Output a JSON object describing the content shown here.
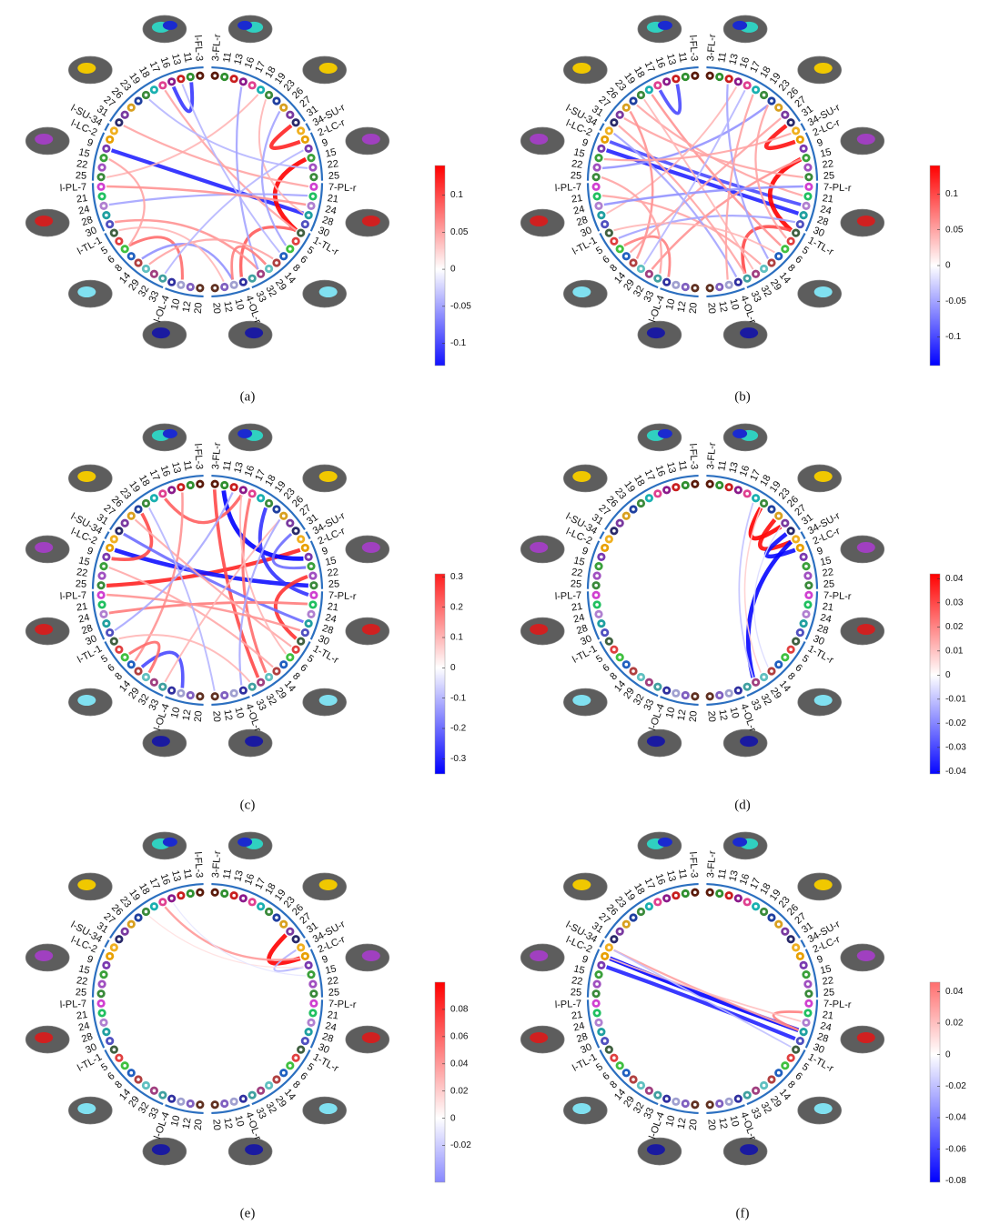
{
  "ring": {
    "labels": [
      "3-FL-r",
      "11",
      "13",
      "16",
      "17",
      "18",
      "19",
      "23",
      "26",
      "27",
      "31",
      "34-SU-r",
      "2-LC-r",
      "9",
      "15",
      "22",
      "25",
      "7-PL-r",
      "21",
      "24",
      "28",
      "30",
      "1-TL-r",
      "5",
      "6",
      "8",
      "14",
      "29",
      "32",
      "33",
      "4-OL-r",
      "10",
      "12",
      "20",
      "l-FL-3",
      "11",
      "13",
      "16",
      "17",
      "18",
      "19",
      "23",
      "26",
      "27",
      "31",
      "l-SU-34",
      "l-LC-2",
      "9",
      "15",
      "22",
      "25",
      "l-PL-7",
      "21",
      "24",
      "28",
      "30",
      "l-TL-1",
      "5",
      "6",
      "8",
      "14",
      "29",
      "32",
      "33",
      "l-OL-4",
      "10",
      "12",
      "20"
    ]
  },
  "chart_data": [
    {
      "type": "chord",
      "caption": "(a)",
      "clim": [
        -0.13,
        0.14
      ],
      "cticks": [
        0.1,
        0.05,
        0,
        -0.05,
        -0.1
      ],
      "edges": [
        {
          "source": 47,
          "target": 20,
          "value": -0.12
        },
        {
          "source": 14,
          "target": 22,
          "value": 0.14
        },
        {
          "source": 10,
          "target": 12,
          "value": 0.12
        },
        {
          "source": 22,
          "target": 30,
          "value": 0.09
        },
        {
          "source": 37,
          "target": 35,
          "value": -0.11
        },
        {
          "source": 58,
          "target": 65,
          "value": 0.08
        },
        {
          "source": 38,
          "target": 22,
          "value": 0.05
        },
        {
          "source": 50,
          "target": 5,
          "value": 0.04
        },
        {
          "source": 53,
          "target": 18,
          "value": -0.05
        },
        {
          "source": 55,
          "target": 28,
          "value": 0.06
        },
        {
          "source": 40,
          "target": 15,
          "value": -0.04
        },
        {
          "source": 44,
          "target": 17,
          "value": 0.05
        },
        {
          "source": 60,
          "target": 31,
          "value": -0.06
        },
        {
          "source": 3,
          "target": 28,
          "value": -0.05
        },
        {
          "source": 6,
          "target": 20,
          "value": 0.04
        },
        {
          "source": 48,
          "target": 58,
          "value": 0.05
        },
        {
          "source": 61,
          "target": 26,
          "value": 0.05
        },
        {
          "source": 36,
          "target": 25,
          "value": -0.04
        },
        {
          "source": 56,
          "target": 32,
          "value": 0.04
        },
        {
          "source": 8,
          "target": 24,
          "value": -0.05
        },
        {
          "source": 63,
          "target": 13,
          "value": -0.04
        },
        {
          "source": 51,
          "target": 19,
          "value": 0.06
        },
        {
          "source": 27,
          "target": 31,
          "value": 0.07
        }
      ]
    },
    {
      "type": "chord",
      "caption": "(b)",
      "clim": [
        -0.14,
        0.14
      ],
      "cticks": [
        0.1,
        0.05,
        0,
        -0.05,
        -0.1
      ],
      "edges": [
        {
          "source": 47,
          "target": 20,
          "value": -0.12
        },
        {
          "source": 46,
          "target": 19,
          "value": -0.1
        },
        {
          "source": 14,
          "target": 22,
          "value": 0.14
        },
        {
          "source": 10,
          "target": 12,
          "value": 0.13
        },
        {
          "source": 36,
          "target": 38,
          "value": -0.1
        },
        {
          "source": 22,
          "target": 29,
          "value": 0.1
        },
        {
          "source": 58,
          "target": 64,
          "value": 0.07
        },
        {
          "source": 39,
          "target": 24,
          "value": 0.06
        },
        {
          "source": 41,
          "target": 18,
          "value": 0.05
        },
        {
          "source": 43,
          "target": 16,
          "value": 0.05
        },
        {
          "source": 49,
          "target": 7,
          "value": -0.06
        },
        {
          "source": 52,
          "target": 27,
          "value": 0.05
        },
        {
          "source": 54,
          "target": 3,
          "value": 0.04
        },
        {
          "source": 57,
          "target": 21,
          "value": -0.05
        },
        {
          "source": 59,
          "target": 9,
          "value": 0.05
        },
        {
          "source": 62,
          "target": 14,
          "value": 0.06
        },
        {
          "source": 45,
          "target": 30,
          "value": -0.05
        },
        {
          "source": 40,
          "target": 28,
          "value": 0.04
        },
        {
          "source": 2,
          "target": 26,
          "value": -0.05
        },
        {
          "source": 5,
          "target": 31,
          "value": 0.05
        },
        {
          "source": 42,
          "target": 60,
          "value": 0.06
        },
        {
          "source": 50,
          "target": 63,
          "value": 0.05
        },
        {
          "source": 53,
          "target": 17,
          "value": -0.06
        },
        {
          "source": 56,
          "target": 25,
          "value": 0.04
        },
        {
          "source": 44,
          "target": 29,
          "value": 0.05
        },
        {
          "source": 61,
          "target": 4,
          "value": -0.04
        },
        {
          "source": 48,
          "target": 11,
          "value": 0.05
        },
        {
          "source": 7,
          "target": 23,
          "value": 0.05
        }
      ]
    },
    {
      "type": "chord",
      "caption": "(c)",
      "clim": [
        -0.35,
        0.31
      ],
      "cticks": [
        0.3,
        0.2,
        0.1,
        0,
        -0.1,
        -0.2,
        -0.3
      ],
      "edges": [
        {
          "source": 50,
          "target": 12,
          "value": 0.3
        },
        {
          "source": 46,
          "target": 16,
          "value": -0.33
        },
        {
          "source": 1,
          "target": 13,
          "value": -0.35
        },
        {
          "source": 17,
          "target": 6,
          "value": -0.28
        },
        {
          "source": 15,
          "target": 22,
          "value": 0.28
        },
        {
          "source": 10,
          "target": 14,
          "value": -0.2
        },
        {
          "source": 38,
          "target": 3,
          "value": 0.22
        },
        {
          "source": 41,
          "target": 47,
          "value": 0.25
        },
        {
          "source": 0,
          "target": 28,
          "value": 0.25
        },
        {
          "source": 4,
          "target": 27,
          "value": 0.2
        },
        {
          "source": 36,
          "target": 59,
          "value": 0.15
        },
        {
          "source": 60,
          "target": 65,
          "value": -0.25
        },
        {
          "source": 58,
          "target": 61,
          "value": 0.2
        },
        {
          "source": 44,
          "target": 20,
          "value": -0.2
        },
        {
          "source": 53,
          "target": 18,
          "value": 0.18
        },
        {
          "source": 48,
          "target": 26,
          "value": 0.12
        },
        {
          "source": 55,
          "target": 2,
          "value": -0.12
        },
        {
          "source": 63,
          "target": 8,
          "value": 0.1
        },
        {
          "source": 42,
          "target": 23,
          "value": 0.12
        },
        {
          "source": 8,
          "target": 30,
          "value": -0.12
        },
        {
          "source": 56,
          "target": 29,
          "value": 0.1
        },
        {
          "source": 40,
          "target": 33,
          "value": -0.1
        },
        {
          "source": 51,
          "target": 21,
          "value": 0.15
        },
        {
          "source": 3,
          "target": 24,
          "value": 0.1
        }
      ]
    },
    {
      "type": "chord",
      "caption": "(d)",
      "clim": [
        -0.041,
        0.042
      ],
      "cticks": [
        0.04,
        0.03,
        0.02,
        0.01,
        0,
        -0.01,
        -0.02,
        -0.03,
        -0.04
      ],
      "edges": [
        {
          "source": 6,
          "target": 9,
          "value": 0.042
        },
        {
          "source": 8,
          "target": 11,
          "value": 0.04
        },
        {
          "source": 10,
          "target": 12,
          "value": -0.04
        },
        {
          "source": 11,
          "target": 28,
          "value": -0.041
        },
        {
          "source": 6,
          "target": 27,
          "value": 0.008
        },
        {
          "source": 5,
          "target": 28,
          "value": -0.01
        },
        {
          "source": 9,
          "target": 26,
          "value": -0.006
        }
      ]
    },
    {
      "type": "chord",
      "caption": "(e)",
      "clim": [
        -0.047,
        0.1
      ],
      "cticks": [
        0.08,
        0.06,
        0.04,
        0.02,
        0,
        -0.02
      ],
      "edges": [
        {
          "source": 9,
          "target": 12,
          "value": 0.1
        },
        {
          "source": 11,
          "target": 13,
          "value": -0.03
        },
        {
          "source": 38,
          "target": 12,
          "value": 0.04
        },
        {
          "source": 40,
          "target": 13,
          "value": 0.012
        },
        {
          "source": 37,
          "target": 14,
          "value": -0.01
        }
      ]
    },
    {
      "type": "chord",
      "caption": "(f)",
      "clim": [
        -0.081,
        0.046
      ],
      "cticks": [
        0.04,
        0.02,
        0,
        -0.02,
        -0.04,
        -0.06,
        -0.08
      ],
      "edges": [
        {
          "source": 46,
          "target": 20,
          "value": -0.08
        },
        {
          "source": 47,
          "target": 21,
          "value": -0.07
        },
        {
          "source": 45,
          "target": 20,
          "value": 0.03
        },
        {
          "source": 18,
          "target": 20,
          "value": 0.04
        },
        {
          "source": 46,
          "target": 19,
          "value": 0.02
        },
        {
          "source": 45,
          "target": 22,
          "value": -0.02
        }
      ]
    }
  ]
}
